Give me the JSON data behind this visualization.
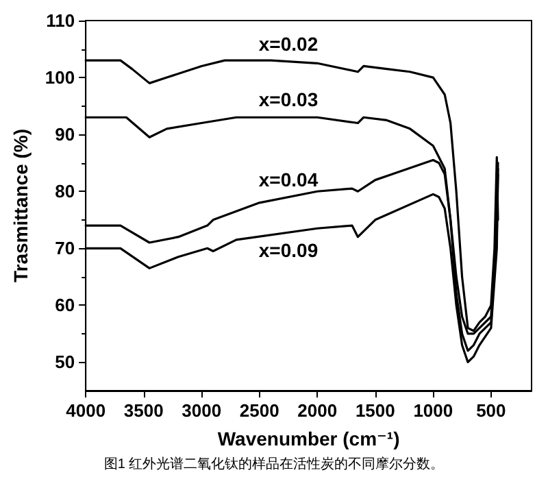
{
  "chart_data": {
    "type": "line",
    "xlabel": "Wavenumber (cm⁻¹)",
    "ylabel": "Trasmittance (%)",
    "xlim": [
      4000,
      150
    ],
    "xticks": [
      4000,
      3500,
      3000,
      2500,
      2000,
      1500,
      1000,
      500
    ],
    "ylim": [
      45,
      110
    ],
    "yticks": [
      50,
      60,
      70,
      80,
      90,
      100,
      110
    ],
    "grid": false,
    "marker": "none",
    "line_style": "solid",
    "annotations": [
      "图1 红外光谱二氧化钛的样品在活性炭的不同摩尔分数。"
    ],
    "series": [
      {
        "name": "x=0.02",
        "color": "#000000",
        "x": [
          4000,
          3700,
          3600,
          3450,
          3300,
          3000,
          2800,
          2400,
          2000,
          1650,
          1600,
          1400,
          1200,
          1000,
          900,
          850,
          800,
          750,
          700,
          650,
          600,
          550,
          500,
          470,
          450,
          440
        ],
        "values": [
          103,
          103,
          101.5,
          99,
          100,
          102,
          103,
          103,
          102.5,
          101,
          102,
          101.5,
          101,
          100,
          97,
          92,
          80,
          65,
          56,
          55.5,
          57,
          58,
          60,
          70,
          86,
          75
        ]
      },
      {
        "name": "x=0.03",
        "color": "#000000",
        "x": [
          4000,
          3650,
          3450,
          3300,
          3000,
          2700,
          2000,
          1650,
          1600,
          1400,
          1200,
          1000,
          900,
          850,
          800,
          750,
          700,
          650,
          600,
          500,
          450,
          440
        ],
        "values": [
          93,
          93,
          89.5,
          91,
          92,
          93,
          93,
          92,
          93,
          92.5,
          91,
          88,
          84,
          75,
          65,
          58,
          55,
          55,
          56,
          58,
          75,
          85
        ]
      },
      {
        "name": "x=0.04",
        "color": "#000000",
        "x": [
          4000,
          3700,
          3450,
          3200,
          2950,
          2900,
          2500,
          2000,
          1700,
          1650,
          1500,
          1000,
          950,
          900,
          850,
          800,
          750,
          700,
          650,
          600,
          500,
          450,
          440
        ],
        "values": [
          74,
          74,
          71,
          72,
          74,
          75,
          78,
          80,
          80.5,
          80,
          82,
          85.5,
          85,
          83,
          75,
          62,
          55,
          52,
          53,
          55,
          57,
          72,
          84
        ]
      },
      {
        "name": "x=0.09",
        "color": "#000000",
        "x": [
          4000,
          3700,
          3450,
          3200,
          2950,
          2900,
          2700,
          2000,
          1700,
          1650,
          1500,
          1000,
          950,
          900,
          850,
          800,
          750,
          700,
          650,
          600,
          500,
          450,
          440
        ],
        "values": [
          70,
          70,
          66.5,
          68.5,
          70,
          69.5,
          71.5,
          73.5,
          74,
          72,
          75,
          79.5,
          79,
          77,
          70,
          60,
          53,
          50,
          51,
          53,
          56,
          70,
          83
        ]
      }
    ]
  }
}
